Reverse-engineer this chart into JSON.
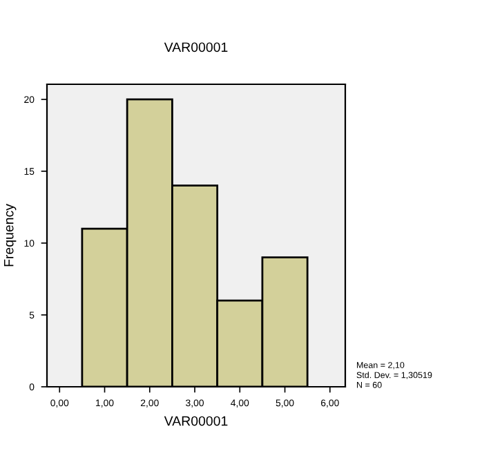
{
  "chart_data": {
    "type": "histogram",
    "title": "VAR00001",
    "xlabel": "VAR00001",
    "ylabel": "Frequency",
    "bins": [
      0.5,
      1.5,
      2.5,
      3.5,
      4.5,
      5.5
    ],
    "values": [
      11,
      20,
      14,
      6,
      9
    ],
    "color": "#d3d09a",
    "xlim": [
      -0.28,
      6.34
    ],
    "xticks": [
      {
        "value": 0,
        "label": "0,00"
      },
      {
        "value": 1,
        "label": "1,00"
      },
      {
        "value": 2,
        "label": "2,00"
      },
      {
        "value": 3,
        "label": "3,00"
      },
      {
        "value": 4,
        "label": "4,00"
      },
      {
        "value": 5,
        "label": "5,00"
      },
      {
        "value": 6,
        "label": "6,00"
      }
    ],
    "ylim": [
      0,
      21.05
    ],
    "yticks": [
      0,
      5,
      10,
      15,
      20
    ],
    "grid": false,
    "annotations": [
      "Mean = 2,10\nStd. Dev. = 1,30519\nN = 60"
    ]
  }
}
